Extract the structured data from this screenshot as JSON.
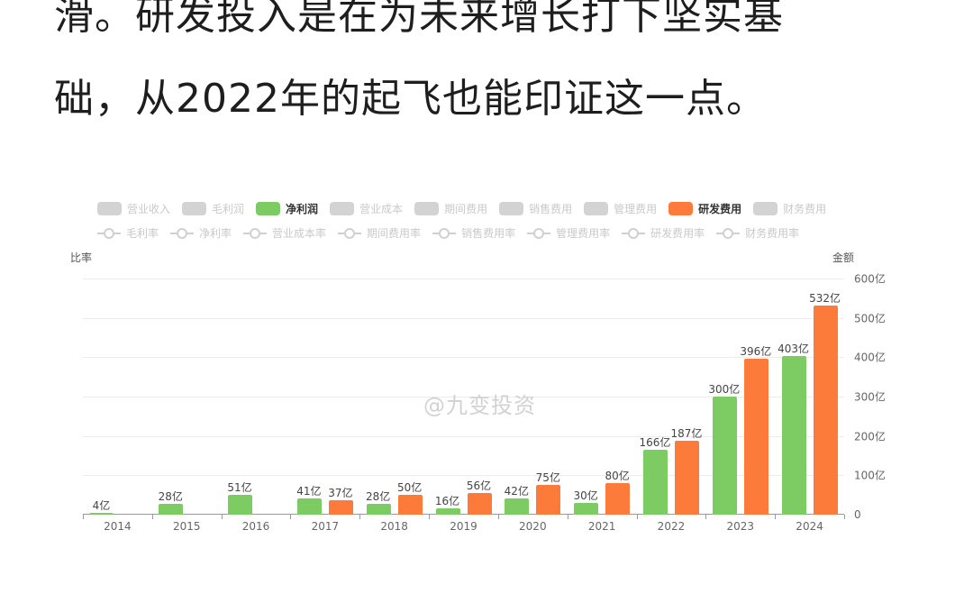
{
  "article": {
    "line1": "滑。研发投入是在为未来增长打下坚实基",
    "line2": "础，从2022年的起飞也能印证这一点。"
  },
  "watermark": "@九变投资",
  "colors": {
    "net_profit": "#7ccb63",
    "rd_expense": "#fd7b3a",
    "inactive": "#d3d3d3"
  },
  "legend": {
    "bars": [
      {
        "label": "营业收入",
        "active": false
      },
      {
        "label": "毛利润",
        "active": false
      },
      {
        "label": "净利润",
        "active": true,
        "color": "#7ccb63"
      },
      {
        "label": "营业成本",
        "active": false
      },
      {
        "label": "期间费用",
        "active": false
      },
      {
        "label": "销售费用",
        "active": false
      },
      {
        "label": "管理费用",
        "active": false
      },
      {
        "label": "研发费用",
        "active": true,
        "color": "#fd7b3a"
      },
      {
        "label": "财务费用",
        "active": false
      }
    ],
    "lines": [
      {
        "label": "毛利率"
      },
      {
        "label": "净利率"
      },
      {
        "label": "营业成本率"
      },
      {
        "label": "期间费用率"
      },
      {
        "label": "销售费用率"
      },
      {
        "label": "管理费用率"
      },
      {
        "label": "研发费用率"
      },
      {
        "label": "财务费用率"
      }
    ]
  },
  "axes": {
    "left_name": "比率",
    "right_name": "金额",
    "right_ticks": [
      "600亿",
      "500亿",
      "400亿",
      "300亿",
      "200亿",
      "100亿",
      "0"
    ]
  },
  "chart_data": {
    "type": "bar",
    "title": "",
    "xlabel": "",
    "ylabel": "金额",
    "ylim": [
      0,
      600
    ],
    "unit": "亿",
    "categories": [
      "2014",
      "2015",
      "2016",
      "2017",
      "2018",
      "2019",
      "2020",
      "2021",
      "2022",
      "2023",
      "2024"
    ],
    "series": [
      {
        "name": "净利润",
        "color": "#7ccb63",
        "values": [
          4,
          28,
          51,
          41,
          28,
          16,
          42,
          30,
          166,
          300,
          403
        ]
      },
      {
        "name": "研发费用",
        "color": "#fd7b3a",
        "values": [
          null,
          null,
          null,
          37,
          50,
          56,
          75,
          80,
          187,
          396,
          532
        ]
      }
    ],
    "legend_position": "top",
    "grid": true
  }
}
